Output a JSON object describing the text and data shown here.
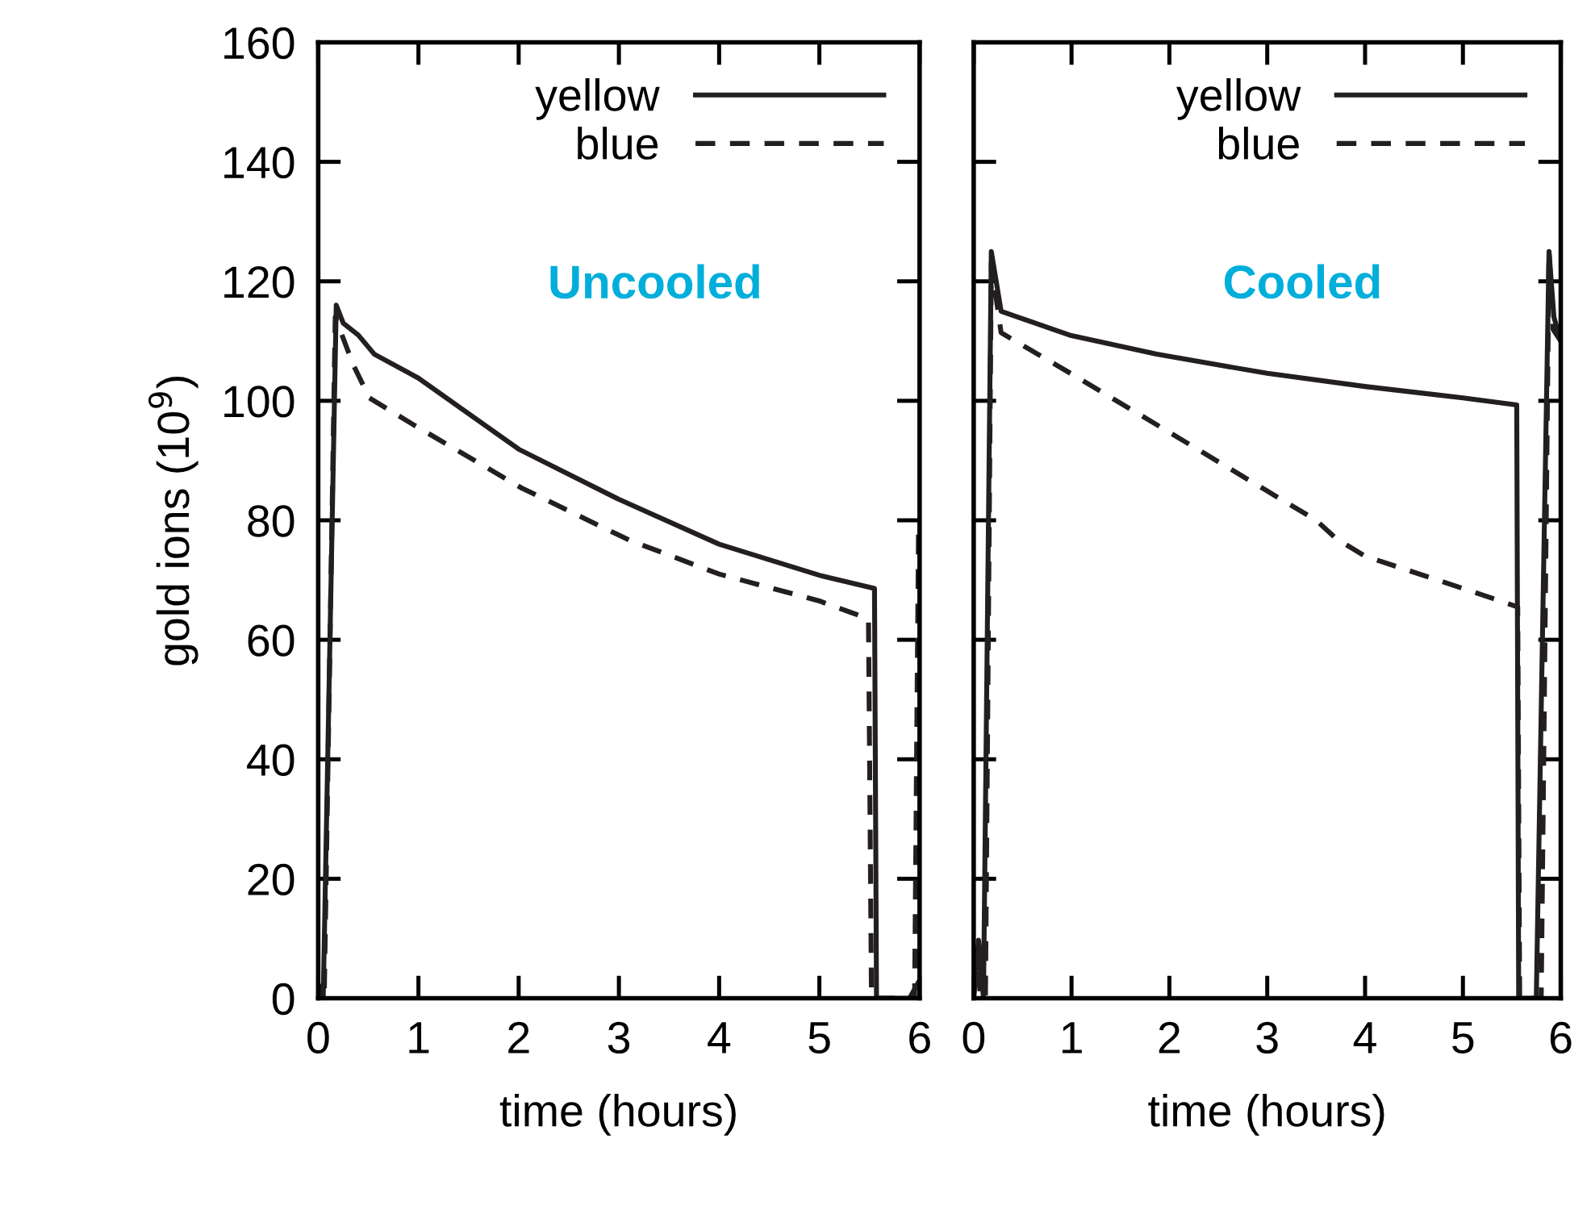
{
  "chart_data": [
    {
      "type": "line",
      "xlabel": "time (hours)",
      "ylabel": "gold ions (10$^{9}$)",
      "annotations": [
        "Uncooled"
      ],
      "xlim": [
        0,
        6
      ],
      "xticks": [
        0,
        1,
        2,
        3,
        4,
        5,
        6
      ],
      "ylim": [
        0,
        160
      ],
      "yticks": [
        0,
        20,
        40,
        60,
        80,
        100,
        120,
        140,
        160
      ],
      "grid": false,
      "legend": "top right",
      "series": [
        {
          "name": "yellow",
          "color": "#231f20",
          "line_style": "solid",
          "x": [
            0,
            0.05,
            0.18,
            0.25,
            0.4,
            0.56,
            1,
            2,
            3,
            4,
            5,
            5.55,
            5.57,
            5.9,
            6
          ],
          "values": [
            0,
            0,
            116,
            113,
            111,
            107.8,
            103.8,
            91.9,
            83.5,
            76,
            70.8,
            68.6,
            0,
            0,
            3
          ]
        },
        {
          "name": "blue",
          "color": "#231f20",
          "line_style": "dashed",
          "x": [
            0,
            0.03,
            0.06,
            0.17,
            0.35,
            0.51,
            0.95,
            2.03,
            3.1,
            4,
            5,
            5.49,
            5.52,
            5.95,
            5.99
          ],
          "values": [
            0,
            2,
            0,
            114,
            106,
            100.5,
            96,
            85.4,
            76.7,
            71,
            66.5,
            63.5,
            0,
            0,
            80
          ]
        }
      ]
    },
    {
      "type": "line",
      "xlabel": "time (hours)",
      "annotations": [
        "Cooled"
      ],
      "tick_labels": "x",
      "xlim": [
        0,
        6
      ],
      "xticks": [
        0,
        1,
        2,
        3,
        4,
        5,
        6
      ],
      "ylim": [
        0,
        160
      ],
      "yticks": [
        0,
        20,
        40,
        60,
        80,
        100,
        120,
        140,
        160
      ],
      "grid": false,
      "legend": "top right",
      "series": [
        {
          "name": "yellow",
          "color": "#231f20",
          "line_style": "solid",
          "x": [
            0,
            0.05,
            0.1,
            0.18,
            0.28,
            0.98,
            1.87,
            3,
            4,
            5,
            5.55,
            5.57,
            5.75,
            5.88,
            5.93,
            6
          ],
          "values": [
            0,
            9.7,
            0,
            125,
            115,
            111,
            107.8,
            104.6,
            102.4,
            100.5,
            99.3,
            0,
            0,
            125,
            114,
            110
          ]
        },
        {
          "name": "blue",
          "color": "#231f20",
          "line_style": "dashed",
          "x": [
            0,
            0.03,
            0.07,
            0.12,
            0.18,
            0.28,
            1,
            1.87,
            3,
            3.5,
            3.7,
            4,
            5,
            5.56,
            5.58,
            5.8,
            5.88,
            5.92,
            6
          ],
          "values": [
            0,
            8,
            0,
            0,
            123,
            111.4,
            104.5,
            96,
            84.9,
            80,
            77,
            74,
            68.6,
            65.5,
            0,
            0,
            125,
            112,
            110
          ]
        }
      ]
    }
  ]
}
